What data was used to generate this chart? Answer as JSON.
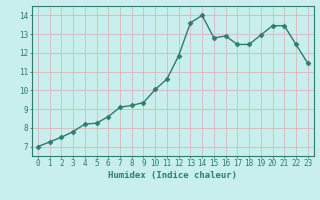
{
  "x": [
    0,
    1,
    2,
    3,
    4,
    5,
    6,
    7,
    8,
    9,
    10,
    11,
    12,
    13,
    14,
    15,
    16,
    17,
    18,
    19,
    20,
    21,
    22,
    23
  ],
  "y": [
    7.0,
    7.25,
    7.5,
    7.8,
    8.2,
    8.25,
    8.6,
    9.1,
    9.2,
    9.35,
    10.05,
    10.6,
    11.85,
    13.6,
    14.0,
    12.8,
    12.9,
    12.45,
    12.45,
    12.95,
    13.45,
    13.45,
    12.45,
    11.45
  ],
  "line_color": "#2e7d6e",
  "marker": "D",
  "marker_size": 2.5,
  "bg_color": "#c8eeee",
  "grid_color": "#d9b8b8",
  "axis_color": "#2e7d6e",
  "xlabel": "Humidex (Indice chaleur)",
  "xlabel_fontsize": 6.5,
  "tick_fontsize": 5.5,
  "ylim": [
    6.5,
    14.5
  ],
  "xlim": [
    -0.5,
    23.5
  ],
  "yticks": [
    7,
    8,
    9,
    10,
    11,
    12,
    13,
    14
  ],
  "xticks": [
    0,
    1,
    2,
    3,
    4,
    5,
    6,
    7,
    8,
    9,
    10,
    11,
    12,
    13,
    14,
    15,
    16,
    17,
    18,
    19,
    20,
    21,
    22,
    23
  ]
}
